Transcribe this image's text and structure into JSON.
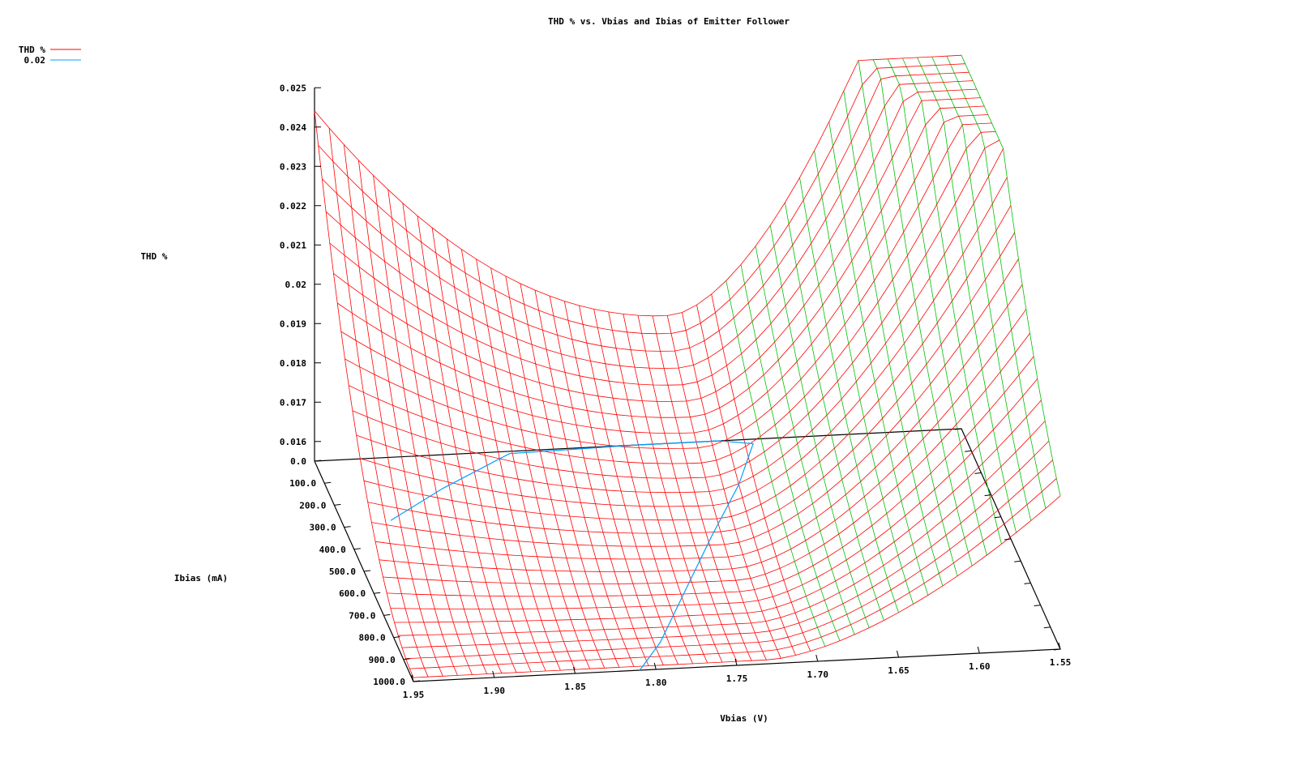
{
  "chart_data": {
    "type": "surface3d",
    "title": "THD % vs. Vbias and Ibias of Emitter Follower",
    "xlabel": "Vbias (V)",
    "ylabel": "Ibias (mA)",
    "zlabel": "THD %",
    "legend": {
      "placement": "top-left",
      "entries": [
        {
          "label": "THD %",
          "color": "#ff0000",
          "kind": "surface"
        },
        {
          "label": "0.02",
          "color": "#00a0ff",
          "kind": "contour"
        }
      ]
    },
    "x_ticks": [
      "1.95",
      "1.90",
      "1.85",
      "1.80",
      "1.75",
      "1.70",
      "1.65",
      "1.60",
      "1.55"
    ],
    "y_ticks": [
      "0.0",
      "100.0",
      "200.0",
      "300.0",
      "400.0",
      "500.0",
      "600.0",
      "700.0",
      "800.0",
      "900.0",
      "1000.0"
    ],
    "z_ticks": [
      "0.016",
      "0.017",
      "0.018",
      "0.019",
      "0.02",
      "0.021",
      "0.022",
      "0.023",
      "0.024",
      "0.025"
    ],
    "xlim": [
      1.55,
      1.95
    ],
    "ylim": [
      0,
      1000
    ],
    "zlim": [
      0.0155,
      0.025
    ],
    "colors": {
      "surface_front": "#ff0000",
      "surface_back": "#00c000",
      "contour": "#00a0ff",
      "axes": "#000000"
    },
    "surface_model": {
      "description": "THD % as function of Vbias and Ibias",
      "x_range": [
        1.55,
        1.95
      ],
      "y_range": [
        0,
        1000
      ],
      "z_min": 0.0155,
      "z_max": 0.025
    },
    "contour_level": 0.02
  }
}
